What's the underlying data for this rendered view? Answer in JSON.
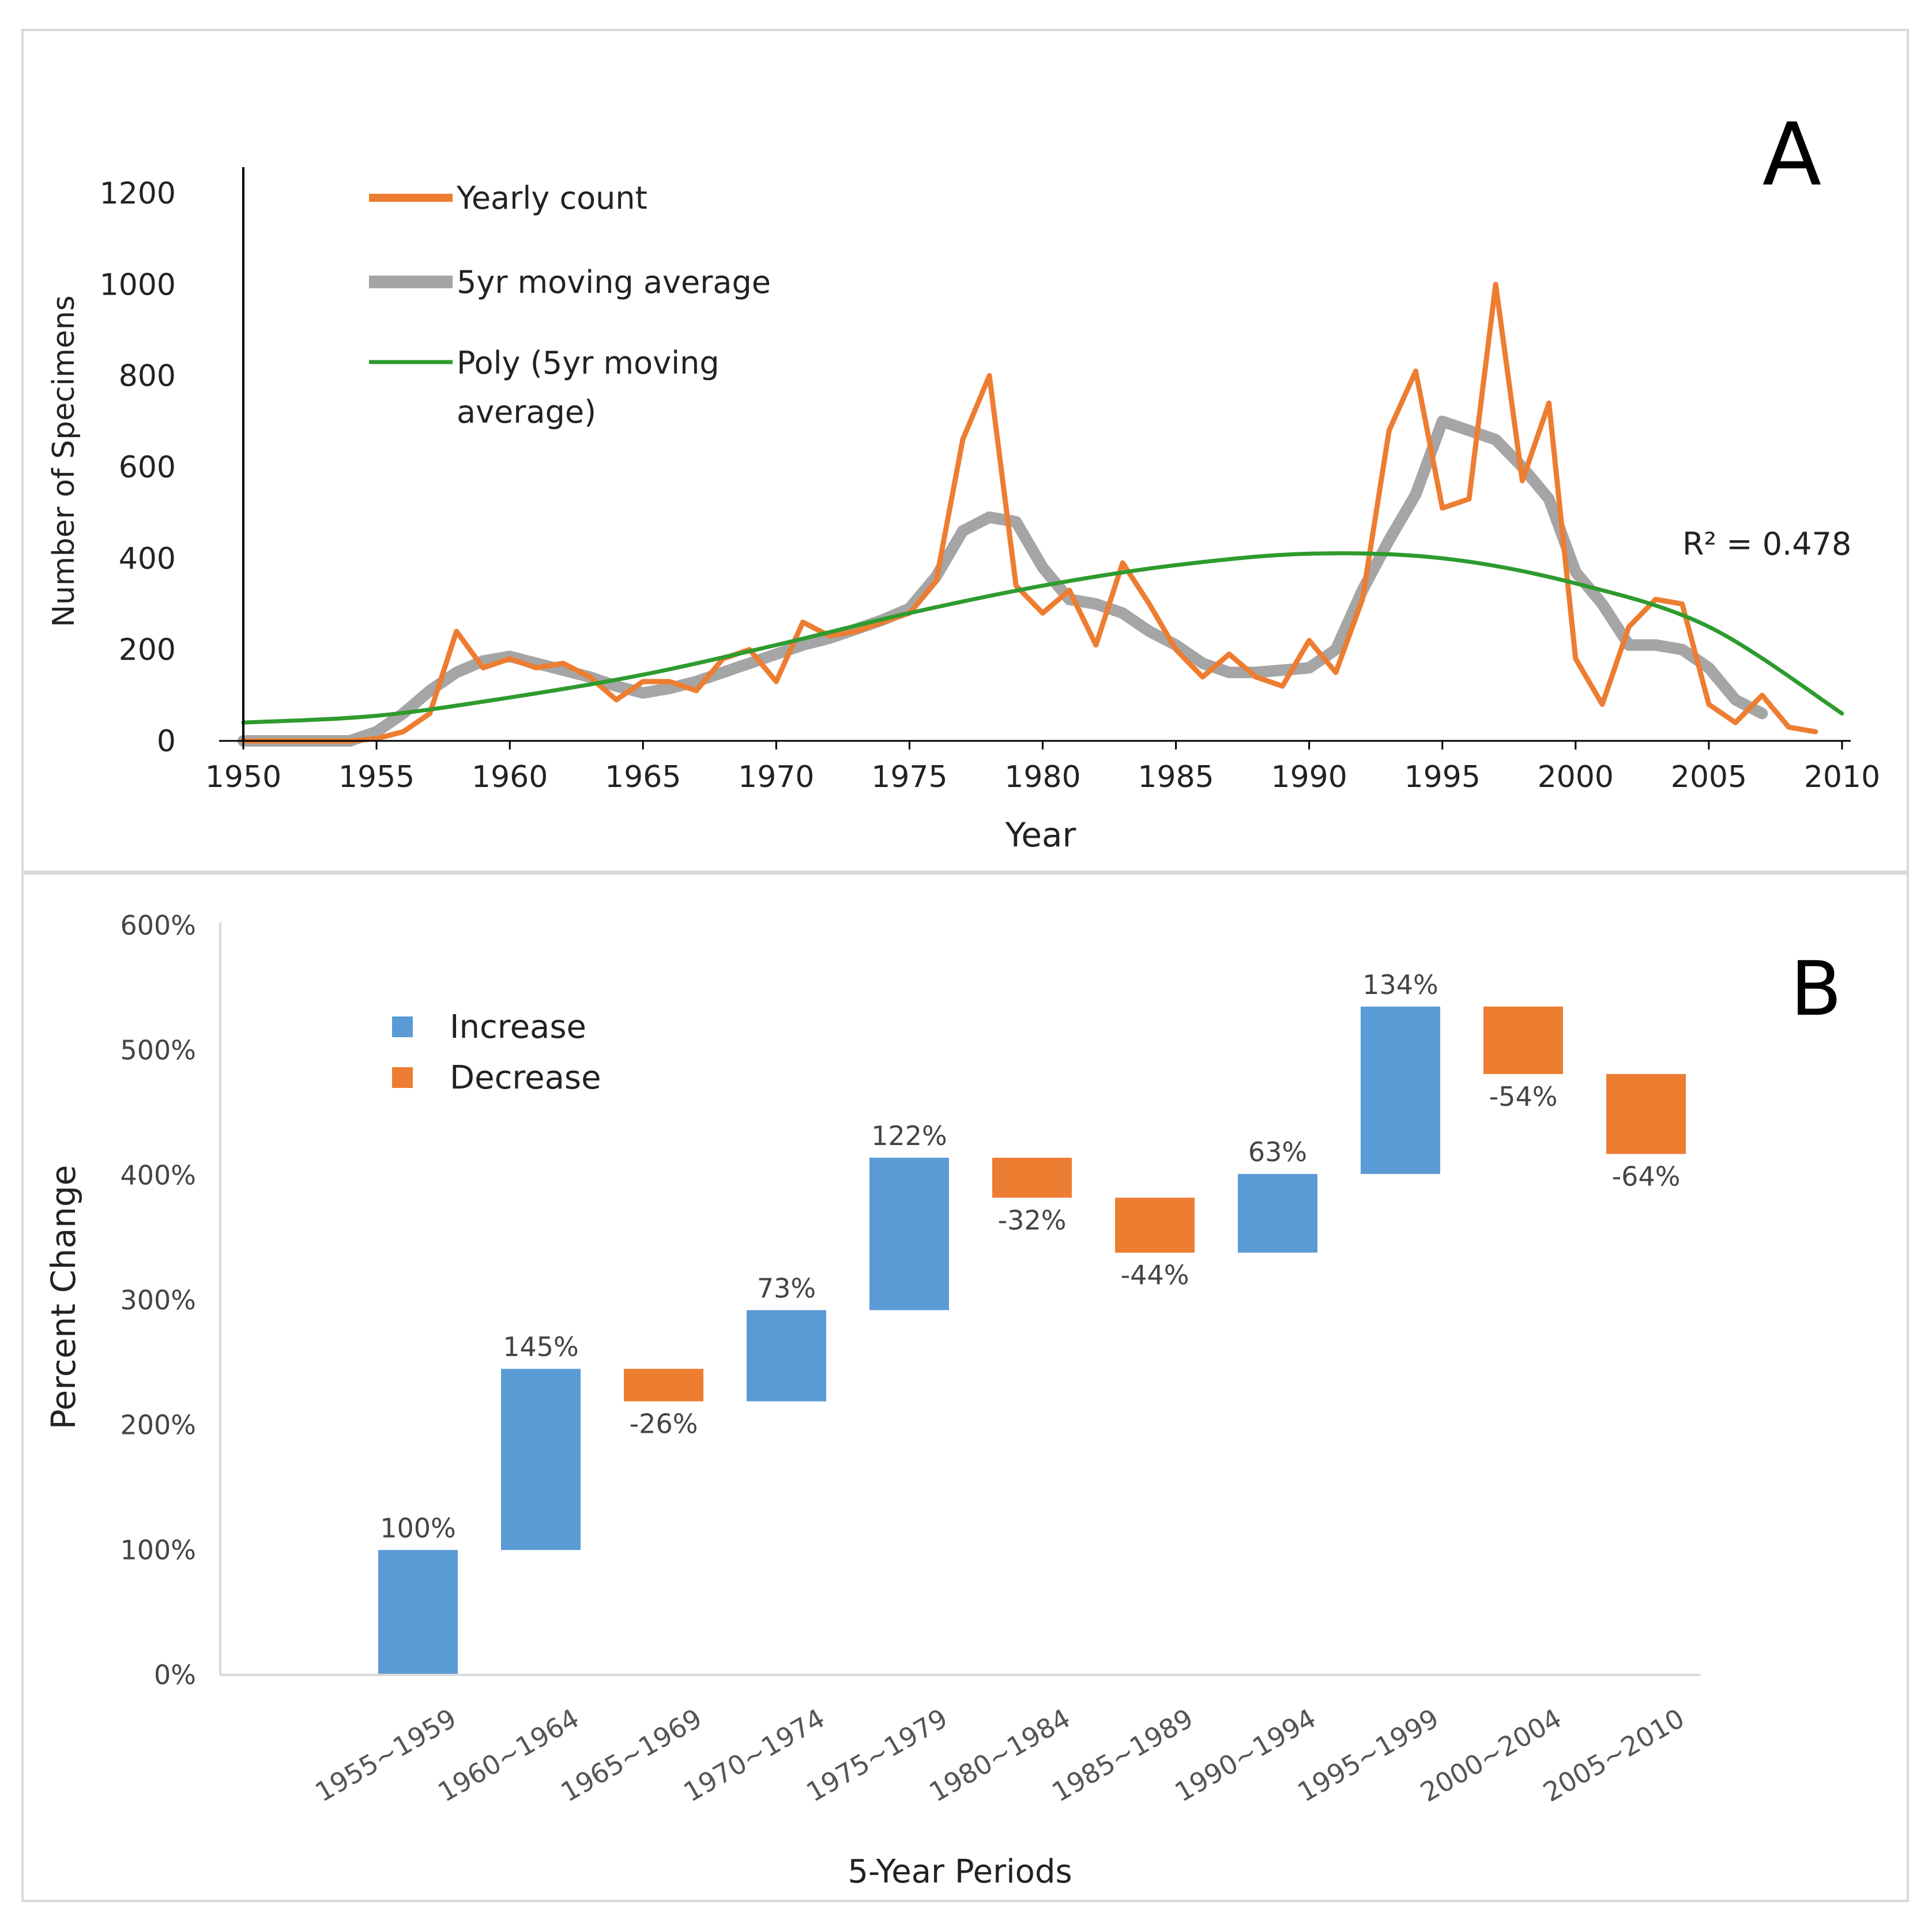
{
  "chart_data": [
    {
      "panel": "A",
      "type": "line",
      "panel_label": "A",
      "xlabel": "Year",
      "ylabel": "Number of Specimens",
      "xlim": [
        1950,
        2010
      ],
      "ylim": [
        0,
        1200
      ],
      "xticks": [
        "1950",
        "1955",
        "1960",
        "1965",
        "1970",
        "1975",
        "1980",
        "1985",
        "1990",
        "1995",
        "2000",
        "2005",
        "2010"
      ],
      "yticks": [
        "0",
        "200",
        "400",
        "600",
        "800",
        "1000",
        "1200"
      ],
      "legend": [
        {
          "label": "Yearly count",
          "color": "#ED7D31"
        },
        {
          "label": "5yr moving average",
          "color": "#A5A5A5"
        },
        {
          "label_line1": "Poly (5yr moving",
          "label_line2": "average)",
          "color": "#2E9B2E"
        }
      ],
      "annotation": "R² = 0.478",
      "series": [
        {
          "name": "Yearly count",
          "color": "#ED7D31",
          "x": [
            1950,
            1951,
            1952,
            1953,
            1954,
            1955,
            1956,
            1957,
            1958,
            1959,
            1960,
            1961,
            1962,
            1963,
            1964,
            1965,
            1966,
            1967,
            1968,
            1969,
            1970,
            1971,
            1972,
            1973,
            1974,
            1975,
            1976,
            1977,
            1978,
            1979,
            1980,
            1981,
            1982,
            1983,
            1984,
            1985,
            1986,
            1987,
            1988,
            1989,
            1990,
            1991,
            1992,
            1993,
            1994,
            1995,
            1996,
            1997,
            1998,
            1999,
            2000,
            2001,
            2002,
            2003,
            2004,
            2005,
            2006,
            2007,
            2008,
            2009
          ],
          "values": [
            0,
            0,
            0,
            0,
            0,
            5,
            20,
            60,
            240,
            160,
            180,
            160,
            170,
            140,
            90,
            130,
            130,
            110,
            180,
            200,
            130,
            260,
            230,
            240,
            260,
            280,
            350,
            660,
            800,
            340,
            280,
            330,
            210,
            390,
            300,
            200,
            140,
            190,
            140,
            120,
            220,
            150,
            310,
            680,
            810,
            510,
            530,
            1000,
            570,
            740,
            180,
            80,
            250,
            310,
            300,
            80,
            40,
            100,
            30,
            20
          ]
        },
        {
          "name": "5yr moving average",
          "color": "#A5A5A5",
          "x": [
            1950,
            1952,
            1954,
            1955,
            1956,
            1957,
            1958,
            1959,
            1960,
            1961,
            1962,
            1963,
            1964,
            1965,
            1966,
            1967,
            1968,
            1969,
            1970,
            1971,
            1972,
            1973,
            1974,
            1975,
            1976,
            1977,
            1978,
            1979,
            1980,
            1981,
            1982,
            1983,
            1984,
            1985,
            1986,
            1987,
            1988,
            1989,
            1990,
            1991,
            1992,
            1993,
            1994,
            1995,
            1996,
            1997,
            1998,
            1999,
            2000,
            2001,
            2002,
            2003,
            2004,
            2005,
            2006,
            2007
          ],
          "values": [
            0,
            0,
            0,
            20,
            60,
            110,
            150,
            175,
            185,
            170,
            155,
            140,
            120,
            105,
            115,
            130,
            150,
            170,
            190,
            210,
            225,
            245,
            265,
            290,
            360,
            460,
            490,
            480,
            380,
            310,
            300,
            280,
            240,
            210,
            170,
            150,
            150,
            155,
            160,
            200,
            330,
            440,
            540,
            700,
            680,
            660,
            600,
            530,
            370,
            300,
            210,
            210,
            200,
            160,
            90,
            60
          ]
        },
        {
          "name": "Poly (5yr moving average)",
          "color": "#2E9B2E",
          "x": [
            1950,
            1955,
            1960,
            1965,
            1970,
            1975,
            1980,
            1985,
            1990,
            1995,
            2000,
            2005,
            2010
          ],
          "values": [
            40,
            55,
            95,
            145,
            210,
            280,
            340,
            385,
            410,
            400,
            345,
            250,
            60
          ]
        }
      ]
    },
    {
      "panel": "B",
      "type": "bar",
      "subtype": "waterfall",
      "panel_label": "B",
      "xlabel": "5-Year Periods",
      "ylabel": "Percent Change",
      "ylim": [
        0,
        600
      ],
      "yticks": [
        "0%",
        "100%",
        "200%",
        "300%",
        "400%",
        "500%",
        "600%"
      ],
      "legend": [
        {
          "label": "Increase",
          "color": "#5B9BD5"
        },
        {
          "label": "Decrease",
          "color": "#ED7D31"
        }
      ],
      "categories": [
        "1955~1959",
        "1960~1964",
        "1965~1969",
        "1970~1974",
        "1975~1979",
        "1980~1984",
        "1985~1989",
        "1990~1994",
        "1995~1999",
        "2000~2004",
        "2005~2010"
      ],
      "bars": [
        {
          "start": 0,
          "end": 100,
          "label": "100%",
          "kind": "increase"
        },
        {
          "start": 100,
          "end": 245,
          "label": "145%",
          "kind": "increase"
        },
        {
          "start": 245,
          "end": 219,
          "label": "-26%",
          "kind": "decrease"
        },
        {
          "start": 219,
          "end": 292,
          "label": "73%",
          "kind": "increase"
        },
        {
          "start": 292,
          "end": 414,
          "label": "122%",
          "kind": "increase"
        },
        {
          "start": 414,
          "end": 382,
          "label": "-32%",
          "kind": "decrease"
        },
        {
          "start": 382,
          "end": 338,
          "label": "-44%",
          "kind": "decrease"
        },
        {
          "start": 338,
          "end": 401,
          "label": "63%",
          "kind": "increase"
        },
        {
          "start": 401,
          "end": 535,
          "label": "134%",
          "kind": "increase"
        },
        {
          "start": 535,
          "end": 481,
          "label": "-54%",
          "kind": "decrease"
        },
        {
          "start": 481,
          "end": 417,
          "label": "-64%",
          "kind": "decrease"
        }
      ]
    }
  ]
}
